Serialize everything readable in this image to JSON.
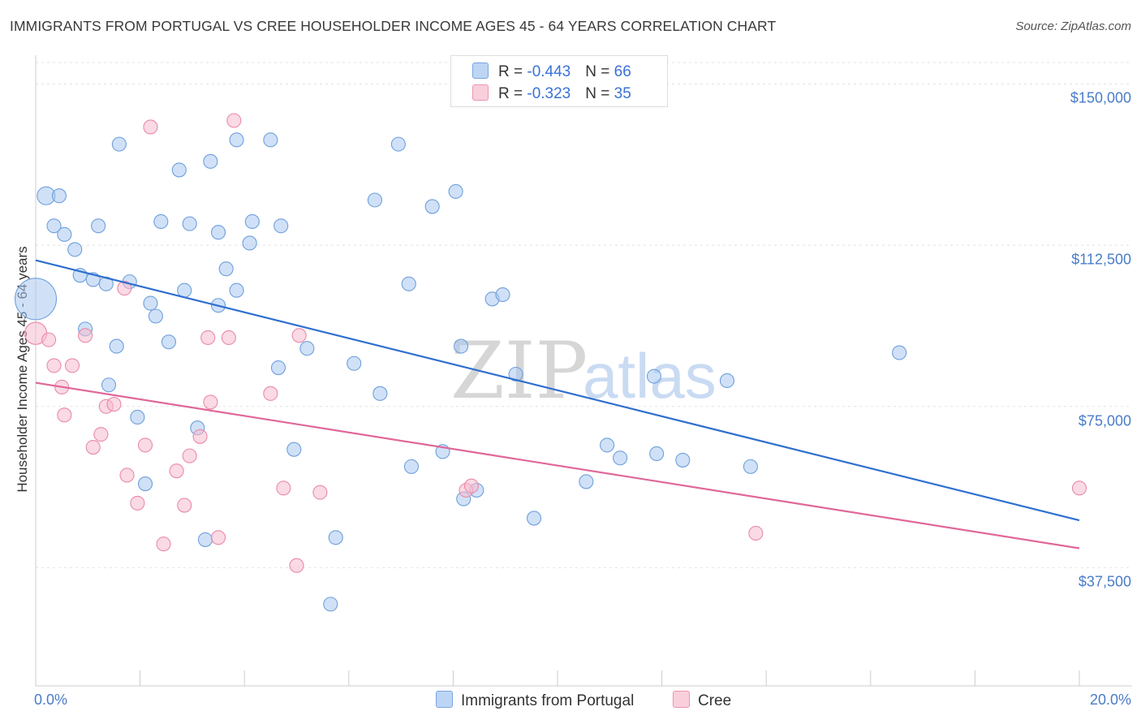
{
  "header": {
    "title": "IMMIGRANTS FROM PORTUGAL VS CREE HOUSEHOLDER INCOME AGES 45 - 64 YEARS CORRELATION CHART",
    "source": "Source: ZipAtlas.com"
  },
  "watermark": {
    "zip": "ZIP",
    "atlas": "atlas"
  },
  "legend": {
    "rows": [
      {
        "r_label": "R = ",
        "r_value": "-0.443",
        "n_label": "N = ",
        "n_value": "66"
      },
      {
        "r_label": "R = ",
        "r_value": "-0.323",
        "n_label": "N = ",
        "n_value": "35"
      }
    ]
  },
  "colors": {
    "blue_fill": "#a9c8f0",
    "blue_stroke": "#6e9fdc",
    "blue_line": "#2f6fcf",
    "pink_fill": "#f6bccd",
    "pink_stroke": "#e98aa8",
    "pink_line": "#e0679a",
    "tick_text": "#4a7cc9",
    "grid": "#e2e2e2"
  },
  "chart_data": {
    "type": "scatter",
    "title": "IMMIGRANTS FROM PORTUGAL VS CREE HOUSEHOLDER INCOME AGES 45 - 64 YEARS CORRELATION CHART",
    "xlabel": "",
    "ylabel": "Householder Income Ages 45 - 64 years",
    "xlim": [
      0,
      20
    ],
    "ylim": [
      10000,
      155000
    ],
    "x_tick_labels": [
      "0.0%",
      "20.0%"
    ],
    "y_ticks": [
      37500,
      75000,
      112500,
      150000
    ],
    "y_tick_labels": [
      "$37,500",
      "$75,000",
      "$112,500",
      "$150,000"
    ],
    "grid": true,
    "legend_position": "top-center",
    "series": [
      {
        "name": "Immigrants from Portugal",
        "color": "#a9c8f0",
        "trend": {
          "x": [
            0,
            20
          ],
          "y": [
            109000,
            48500
          ]
        },
        "points": [
          [
            0.0,
            100000,
            3
          ],
          [
            0.2,
            124000,
            1.3
          ],
          [
            0.45,
            124000,
            1
          ],
          [
            0.35,
            117000,
            1
          ],
          [
            0.55,
            115000,
            1
          ],
          [
            0.75,
            111500,
            1
          ],
          [
            0.85,
            105500,
            1
          ],
          [
            1.1,
            104500,
            1
          ],
          [
            1.2,
            117000,
            1
          ],
          [
            0.95,
            93000,
            1
          ],
          [
            1.35,
            103500,
            1
          ],
          [
            1.55,
            89000,
            1
          ],
          [
            1.8,
            104000,
            1
          ],
          [
            1.4,
            80000,
            1
          ],
          [
            1.6,
            136000,
            1
          ],
          [
            1.95,
            72500,
            1
          ],
          [
            2.1,
            57000,
            1
          ],
          [
            2.2,
            99000,
            1
          ],
          [
            2.3,
            96000,
            1
          ],
          [
            2.4,
            118000,
            1
          ],
          [
            2.55,
            90000,
            1
          ],
          [
            2.75,
            130000,
            1
          ],
          [
            2.85,
            102000,
            1
          ],
          [
            2.95,
            117500,
            1
          ],
          [
            3.1,
            70000,
            1
          ],
          [
            3.35,
            132000,
            1
          ],
          [
            3.5,
            115500,
            1
          ],
          [
            3.5,
            98500,
            1
          ],
          [
            3.65,
            107000,
            1
          ],
          [
            3.85,
            102000,
            1
          ],
          [
            3.85,
            137000,
            1
          ],
          [
            4.1,
            113000,
            1
          ],
          [
            4.15,
            118000,
            1
          ],
          [
            4.5,
            137000,
            1
          ],
          [
            4.65,
            84000,
            1
          ],
          [
            4.7,
            117000,
            1
          ],
          [
            4.95,
            65000,
            1
          ],
          [
            5.2,
            88500,
            1
          ],
          [
            3.25,
            44000,
            1
          ],
          [
            5.65,
            29000,
            1
          ],
          [
            5.75,
            44500,
            1
          ],
          [
            6.1,
            85000,
            1
          ],
          [
            6.5,
            123000,
            1
          ],
          [
            6.6,
            78000,
            1
          ],
          [
            6.95,
            136000,
            1
          ],
          [
            7.15,
            103500,
            1
          ],
          [
            7.2,
            61000,
            1
          ],
          [
            7.6,
            121500,
            1
          ],
          [
            7.8,
            64500,
            1
          ],
          [
            8.05,
            125000,
            1
          ],
          [
            8.15,
            89000,
            1
          ],
          [
            8.2,
            53500,
            1
          ],
          [
            8.45,
            55500,
            1
          ],
          [
            8.75,
            100000,
            1
          ],
          [
            8.95,
            101000,
            1
          ],
          [
            9.2,
            82500,
            1
          ],
          [
            9.55,
            49000,
            1
          ],
          [
            10.55,
            57500,
            1
          ],
          [
            10.95,
            66000,
            1
          ],
          [
            11.2,
            63000,
            1
          ],
          [
            11.85,
            82000,
            1
          ],
          [
            11.9,
            64000,
            1
          ],
          [
            12.4,
            62500,
            1
          ],
          [
            13.25,
            81000,
            1
          ],
          [
            13.7,
            61000,
            1
          ],
          [
            16.55,
            87500,
            1
          ]
        ]
      },
      {
        "name": "Cree",
        "color": "#f6bccd",
        "trend": {
          "x": [
            0,
            20
          ],
          "y": [
            80500,
            42000
          ]
        },
        "points": [
          [
            0.0,
            92000,
            1.6
          ],
          [
            0.25,
            90500,
            1
          ],
          [
            0.35,
            84500,
            1
          ],
          [
            0.55,
            73000,
            1
          ],
          [
            0.5,
            79500,
            1
          ],
          [
            0.7,
            84500,
            1
          ],
          [
            0.95,
            91500,
            1
          ],
          [
            1.1,
            65500,
            1
          ],
          [
            1.25,
            68500,
            1
          ],
          [
            1.35,
            75000,
            1
          ],
          [
            1.5,
            75500,
            1
          ],
          [
            1.7,
            102500,
            1
          ],
          [
            1.75,
            59000,
            1
          ],
          [
            1.95,
            52500,
            1
          ],
          [
            2.1,
            66000,
            1
          ],
          [
            2.2,
            140000,
            1
          ],
          [
            2.45,
            43000,
            1
          ],
          [
            2.7,
            60000,
            1
          ],
          [
            2.85,
            52000,
            1
          ],
          [
            2.95,
            63500,
            1
          ],
          [
            3.15,
            68000,
            1
          ],
          [
            3.3,
            91000,
            1
          ],
          [
            3.35,
            76000,
            1
          ],
          [
            3.5,
            44500,
            1
          ],
          [
            3.7,
            91000,
            1
          ],
          [
            3.8,
            141500,
            1
          ],
          [
            4.5,
            78000,
            1
          ],
          [
            4.75,
            56000,
            1
          ],
          [
            5.0,
            38000,
            1
          ],
          [
            5.05,
            91500,
            1
          ],
          [
            5.45,
            55000,
            1
          ],
          [
            8.25,
            55500,
            1
          ],
          [
            8.35,
            56500,
            1
          ],
          [
            13.8,
            45500,
            1
          ],
          [
            20.0,
            56000,
            1
          ]
        ]
      }
    ]
  }
}
